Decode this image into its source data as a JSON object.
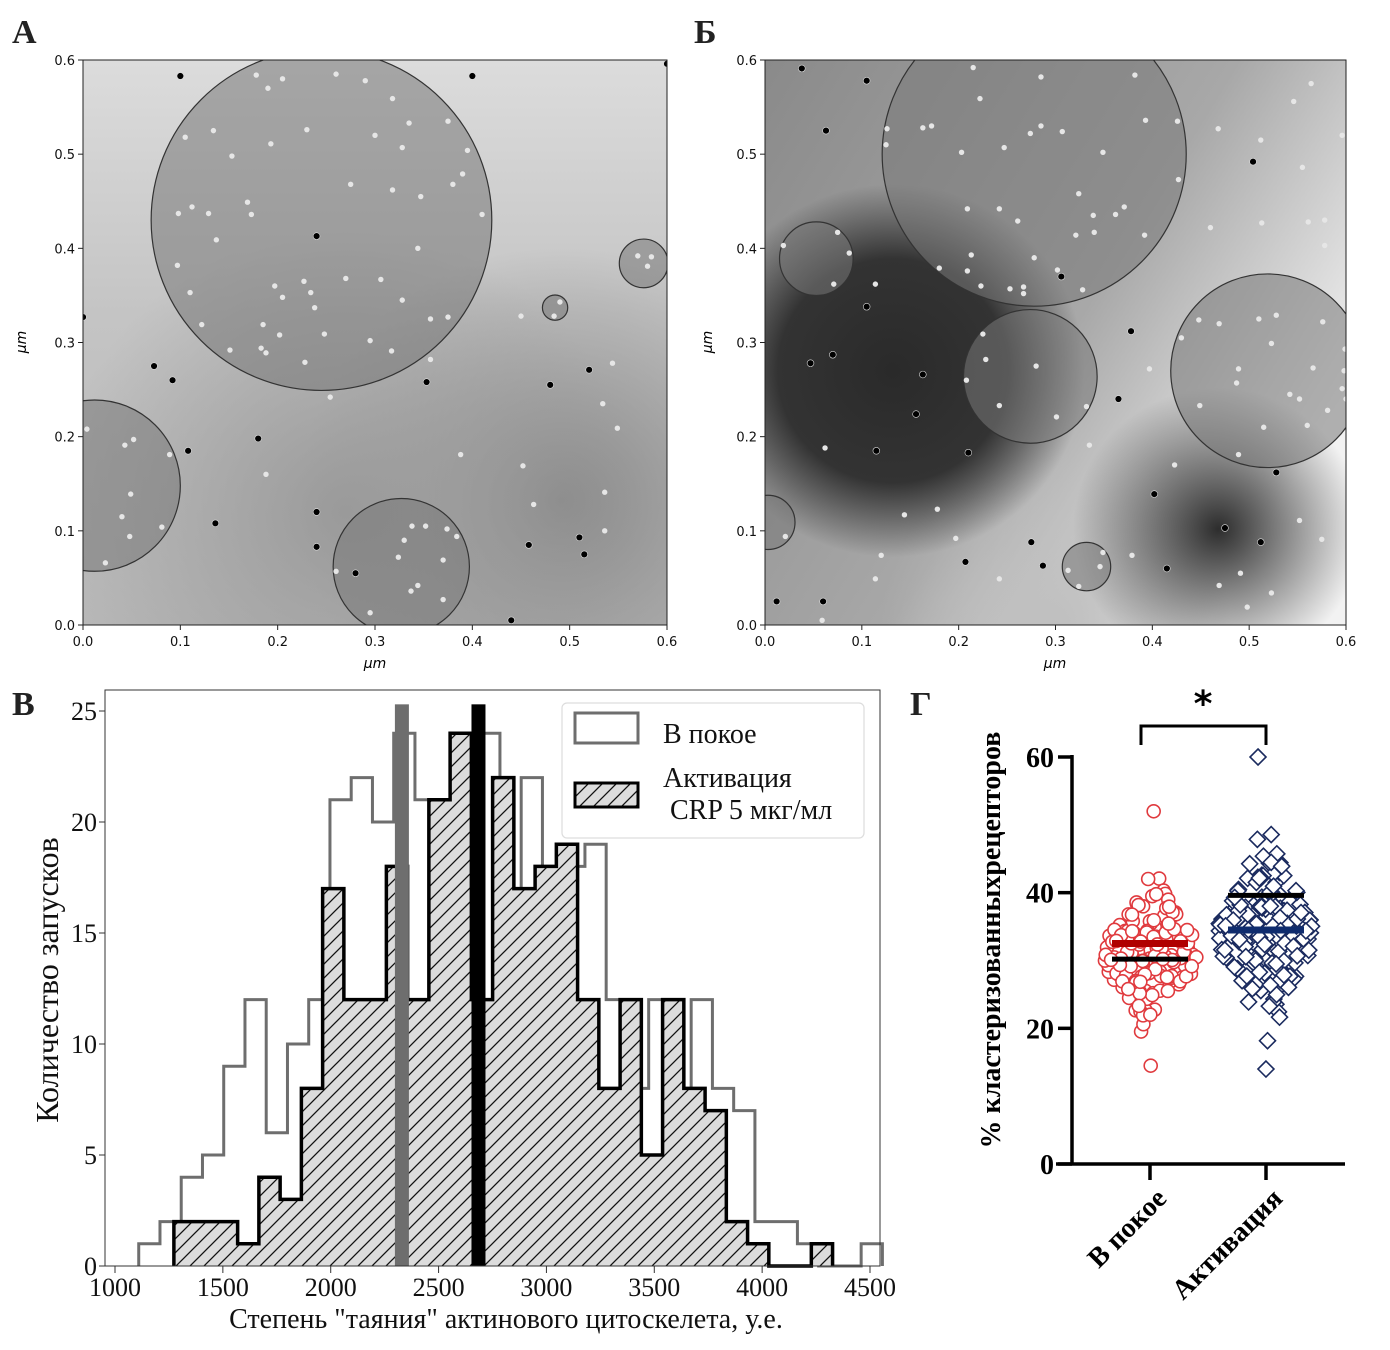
{
  "panels": {
    "a": {
      "letter": "А"
    },
    "b": {
      "letter": "Б"
    },
    "c": {
      "letter": "В"
    },
    "d": {
      "letter": "Г"
    }
  },
  "chart_data": [
    {
      "id": "A",
      "type": "scatter",
      "title": "",
      "xlabel": "μm",
      "ylabel": "μm",
      "xlim": [
        0.0,
        0.6
      ],
      "ylim": [
        0.0,
        0.6
      ],
      "xticks": [
        "0.0",
        "0.1",
        "0.2",
        "0.3",
        "0.4",
        "0.5",
        "0.6"
      ],
      "yticks": [
        "0.0",
        "0.1",
        "0.2",
        "0.3",
        "0.4",
        "0.5",
        "0.6"
      ],
      "background": "grayscale density map (lighter at top-left/top-right, darker lower-right)",
      "clusters": [
        {
          "cx": 0.245,
          "cy": 0.43,
          "r": 0.175
        },
        {
          "cx": 0.012,
          "cy": 0.148,
          "r": 0.088
        },
        {
          "cx": 0.327,
          "cy": 0.062,
          "r": 0.07
        },
        {
          "cx": 0.576,
          "cy": 0.384,
          "r": 0.025
        },
        {
          "cx": 0.485,
          "cy": 0.337,
          "r": 0.013
        }
      ],
      "points": [
        [
          0.1,
          0.583
        ],
        [
          0.4,
          0.583
        ],
        [
          0.6,
          0.596
        ],
        [
          0.24,
          0.413
        ],
        [
          0.0,
          0.327
        ],
        [
          0.092,
          0.26
        ],
        [
          0.073,
          0.275
        ],
        [
          0.108,
          0.185
        ],
        [
          0.136,
          0.108
        ],
        [
          0.24,
          0.12
        ],
        [
          0.24,
          0.083
        ],
        [
          0.28,
          0.055
        ],
        [
          0.353,
          0.258
        ],
        [
          0.48,
          0.255
        ],
        [
          0.52,
          0.271
        ],
        [
          0.458,
          0.085
        ],
        [
          0.51,
          0.093
        ],
        [
          0.515,
          0.075
        ],
        [
          0.18,
          0.198
        ],
        [
          0.44,
          0.005
        ],
        [
          0.178,
          0.584
        ],
        [
          0.19,
          0.57
        ],
        [
          0.205,
          0.58
        ],
        [
          0.26,
          0.585
        ],
        [
          0.29,
          0.578
        ],
        [
          0.318,
          0.559
        ],
        [
          0.134,
          0.525
        ],
        [
          0.23,
          0.526
        ],
        [
          0.193,
          0.511
        ],
        [
          0.3,
          0.52
        ],
        [
          0.335,
          0.533
        ],
        [
          0.375,
          0.535
        ],
        [
          0.105,
          0.518
        ],
        [
          0.153,
          0.498
        ],
        [
          0.328,
          0.507
        ],
        [
          0.395,
          0.504
        ],
        [
          0.275,
          0.468
        ],
        [
          0.318,
          0.462
        ],
        [
          0.38,
          0.468
        ],
        [
          0.39,
          0.479
        ],
        [
          0.347,
          0.455
        ],
        [
          0.098,
          0.437
        ],
        [
          0.112,
          0.444
        ],
        [
          0.129,
          0.437
        ],
        [
          0.169,
          0.449
        ],
        [
          0.173,
          0.436
        ],
        [
          0.41,
          0.436
        ],
        [
          0.137,
          0.409
        ],
        [
          0.344,
          0.4
        ],
        [
          0.097,
          0.382
        ],
        [
          0.27,
          0.368
        ],
        [
          0.306,
          0.367
        ],
        [
          0.227,
          0.365
        ],
        [
          0.197,
          0.36
        ],
        [
          0.234,
          0.353
        ],
        [
          0.205,
          0.348
        ],
        [
          0.11,
          0.353
        ],
        [
          0.238,
          0.337
        ],
        [
          0.328,
          0.345
        ],
        [
          0.122,
          0.319
        ],
        [
          0.185,
          0.319
        ],
        [
          0.357,
          0.325
        ],
        [
          0.375,
          0.327
        ],
        [
          0.202,
          0.308
        ],
        [
          0.248,
          0.309
        ],
        [
          0.151,
          0.292
        ],
        [
          0.183,
          0.294
        ],
        [
          0.188,
          0.289
        ],
        [
          0.228,
          0.279
        ],
        [
          0.295,
          0.302
        ],
        [
          0.317,
          0.291
        ],
        [
          0.004,
          0.208
        ],
        [
          0.043,
          0.191
        ],
        [
          0.052,
          0.197
        ],
        [
          0.089,
          0.181
        ],
        [
          0.049,
          0.139
        ],
        [
          0.04,
          0.115
        ],
        [
          0.048,
          0.094
        ],
        [
          0.081,
          0.104
        ],
        [
          0.023,
          0.066
        ],
        [
          0.338,
          0.105
        ],
        [
          0.352,
          0.105
        ],
        [
          0.374,
          0.102
        ],
        [
          0.384,
          0.094
        ],
        [
          0.33,
          0.09
        ],
        [
          0.324,
          0.072
        ],
        [
          0.37,
          0.069
        ],
        [
          0.337,
          0.036
        ],
        [
          0.344,
          0.042
        ],
        [
          0.37,
          0.027
        ],
        [
          0.295,
          0.013
        ],
        [
          0.26,
          0.057
        ],
        [
          0.57,
          0.392
        ],
        [
          0.584,
          0.391
        ],
        [
          0.58,
          0.381
        ],
        [
          0.49,
          0.343
        ],
        [
          0.484,
          0.328
        ],
        [
          0.388,
          0.181
        ],
        [
          0.452,
          0.169
        ],
        [
          0.463,
          0.128
        ],
        [
          0.536,
          0.141
        ],
        [
          0.534,
          0.235
        ],
        [
          0.549,
          0.209
        ],
        [
          0.544,
          0.278
        ],
        [
          0.536,
          0.1
        ],
        [
          0.254,
          0.242
        ],
        [
          0.188,
          0.16
        ],
        [
          0.357,
          0.282
        ],
        [
          0.45,
          0.328
        ]
      ]
    },
    {
      "id": "Б",
      "type": "scatter",
      "title": "",
      "xlabel": "μm",
      "ylabel": "μm",
      "xlim": [
        0.0,
        0.6
      ],
      "ylim": [
        0.0,
        0.6
      ],
      "xticks": [
        "0.0",
        "0.1",
        "0.2",
        "0.3",
        "0.4",
        "0.5",
        "0.6"
      ],
      "yticks": [
        "0.0",
        "0.1",
        "0.2",
        "0.3",
        "0.4",
        "0.5",
        "0.6"
      ],
      "background": "grayscale density map (very light top-right, dark regions at left-middle and lower-right)",
      "clusters": [
        {
          "cx": 0.278,
          "cy": 0.5,
          "r": 0.157
        },
        {
          "cx": 0.053,
          "cy": 0.389,
          "r": 0.038
        },
        {
          "cx": 0.274,
          "cy": 0.264,
          "r": 0.069
        },
        {
          "cx": 0.519,
          "cy": 0.27,
          "r": 0.1
        },
        {
          "cx": 0.003,
          "cy": 0.109,
          "r": 0.028
        },
        {
          "cx": 0.332,
          "cy": 0.062,
          "r": 0.025
        }
      ],
      "points": [
        [
          0.038,
          0.591
        ],
        [
          0.105,
          0.578
        ],
        [
          0.063,
          0.525
        ],
        [
          0.306,
          0.37
        ],
        [
          0.047,
          0.278
        ],
        [
          0.07,
          0.287
        ],
        [
          0.163,
          0.266
        ],
        [
          0.156,
          0.224
        ],
        [
          0.115,
          0.185
        ],
        [
          0.21,
          0.183
        ],
        [
          0.378,
          0.312
        ],
        [
          0.528,
          0.162
        ],
        [
          0.402,
          0.139
        ],
        [
          0.475,
          0.103
        ],
        [
          0.512,
          0.088
        ],
        [
          0.415,
          0.06
        ],
        [
          0.275,
          0.088
        ],
        [
          0.287,
          0.063
        ],
        [
          0.207,
          0.067
        ],
        [
          0.012,
          0.025
        ],
        [
          0.06,
          0.025
        ],
        [
          0.105,
          0.338
        ],
        [
          0.365,
          0.24
        ],
        [
          0.504,
          0.492
        ],
        [
          0.215,
          0.592
        ],
        [
          0.285,
          0.582
        ],
        [
          0.382,
          0.584
        ],
        [
          0.222,
          0.559
        ],
        [
          0.126,
          0.527
        ],
        [
          0.163,
          0.528
        ],
        [
          0.172,
          0.53
        ],
        [
          0.274,
          0.522
        ],
        [
          0.285,
          0.53
        ],
        [
          0.307,
          0.524
        ],
        [
          0.393,
          0.536
        ],
        [
          0.426,
          0.535
        ],
        [
          0.125,
          0.51
        ],
        [
          0.203,
          0.502
        ],
        [
          0.247,
          0.507
        ],
        [
          0.349,
          0.502
        ],
        [
          0.427,
          0.473
        ],
        [
          0.324,
          0.458
        ],
        [
          0.209,
          0.442
        ],
        [
          0.242,
          0.442
        ],
        [
          0.261,
          0.429
        ],
        [
          0.339,
          0.435
        ],
        [
          0.362,
          0.436
        ],
        [
          0.371,
          0.444
        ],
        [
          0.321,
          0.414
        ],
        [
          0.34,
          0.417
        ],
        [
          0.392,
          0.414
        ],
        [
          0.213,
          0.393
        ],
        [
          0.278,
          0.39
        ],
        [
          0.18,
          0.379
        ],
        [
          0.209,
          0.376
        ],
        [
          0.302,
          0.377
        ],
        [
          0.223,
          0.36
        ],
        [
          0.253,
          0.357
        ],
        [
          0.267,
          0.359
        ],
        [
          0.267,
          0.352
        ],
        [
          0.328,
          0.356
        ],
        [
          0.019,
          0.403
        ],
        [
          0.075,
          0.417
        ],
        [
          0.087,
          0.395
        ],
        [
          0.071,
          0.362
        ],
        [
          0.114,
          0.362
        ],
        [
          0.225,
          0.309
        ],
        [
          0.228,
          0.282
        ],
        [
          0.28,
          0.275
        ],
        [
          0.208,
          0.26
        ],
        [
          0.242,
          0.233
        ],
        [
          0.301,
          0.221
        ],
        [
          0.332,
          0.232
        ],
        [
          0.448,
          0.324
        ],
        [
          0.469,
          0.32
        ],
        [
          0.51,
          0.325
        ],
        [
          0.528,
          0.329
        ],
        [
          0.576,
          0.322
        ],
        [
          0.43,
          0.305
        ],
        [
          0.523,
          0.299
        ],
        [
          0.599,
          0.293
        ],
        [
          0.489,
          0.272
        ],
        [
          0.566,
          0.273
        ],
        [
          0.598,
          0.27
        ],
        [
          0.487,
          0.257
        ],
        [
          0.542,
          0.245
        ],
        [
          0.552,
          0.24
        ],
        [
          0.596,
          0.251
        ],
        [
          0.449,
          0.233
        ],
        [
          0.6,
          0.24
        ],
        [
          0.581,
          0.228
        ],
        [
          0.56,
          0.212
        ],
        [
          0.515,
          0.21
        ],
        [
          0.489,
          0.181
        ],
        [
          0.468,
          0.527
        ],
        [
          0.512,
          0.515
        ],
        [
          0.596,
          0.52
        ],
        [
          0.546,
          0.556
        ],
        [
          0.564,
          0.575
        ],
        [
          0.555,
          0.486
        ],
        [
          0.46,
          0.422
        ],
        [
          0.513,
          0.427
        ],
        [
          0.561,
          0.428
        ],
        [
          0.578,
          0.43
        ],
        [
          0.578,
          0.403
        ],
        [
          0.021,
          0.094
        ],
        [
          0.12,
          0.074
        ],
        [
          0.114,
          0.049
        ],
        [
          0.144,
          0.117
        ],
        [
          0.178,
          0.123
        ],
        [
          0.197,
          0.092
        ],
        [
          0.242,
          0.049
        ],
        [
          0.062,
          0.188
        ],
        [
          0.335,
          0.191
        ],
        [
          0.397,
          0.272
        ],
        [
          0.313,
          0.058
        ],
        [
          0.324,
          0.041
        ],
        [
          0.346,
          0.062
        ],
        [
          0.349,
          0.077
        ],
        [
          0.379,
          0.074
        ],
        [
          0.552,
          0.111
        ],
        [
          0.575,
          0.091
        ],
        [
          0.491,
          0.055
        ],
        [
          0.469,
          0.042
        ],
        [
          0.523,
          0.034
        ],
        [
          0.498,
          0.019
        ],
        [
          0.059,
          0.005
        ],
        [
          0.423,
          0.17
        ]
      ]
    },
    {
      "id": "В",
      "type": "bar",
      "subtype": "step-histogram",
      "title": "",
      "xlabel": "Степень \"таяния\" актинового цитоскелета, у.е.",
      "ylabel": "Количество запусков",
      "xlim": [
        960,
        4550
      ],
      "ylim": [
        0,
        26.2
      ],
      "xticks": [
        "1000",
        "1500",
        "2000",
        "2500",
        "3000",
        "3500",
        "4000",
        "4500"
      ],
      "xtick_values": [
        1000,
        1500,
        2000,
        2500,
        3000,
        3500,
        4000,
        4500
      ],
      "yticks": [
        "0",
        "5",
        "10",
        "15",
        "20",
        "25"
      ],
      "ytick_values": [
        0,
        5,
        10,
        15,
        20,
        25
      ],
      "legend": {
        "position": "top-right",
        "entries": [
          "В покое",
          "Активация\n CRP 5 мкг/мл"
        ],
        "entry_lines": [
          [
            "В покое"
          ],
          [
            "Активация",
            " CRP 5 мкг/мл"
          ]
        ]
      },
      "series": [
        {
          "name": "В покое",
          "style": "gray outline, no fill",
          "color": "#6e6e6e",
          "bin_start": 1110,
          "bin_width": 98.5,
          "values": [
            1,
            2,
            4,
            5,
            9,
            12,
            6,
            10,
            12,
            21,
            22,
            20,
            24,
            21,
            21,
            23,
            24,
            12,
            22,
            17,
            18,
            19,
            12,
            8,
            12,
            5,
            12,
            8,
            7,
            2,
            2,
            1,
            0,
            0,
            1
          ]
        },
        {
          "name": "Активация CRP 5 мкг/мл",
          "style": "black outline, light gray fill with diagonal hatch",
          "color": "#000000",
          "fill": "#dcdcdc",
          "bin_start": 1273,
          "bin_width": 98.5,
          "values": [
            2,
            2,
            2,
            1,
            4,
            3,
            8,
            17,
            12,
            12,
            18,
            12,
            21,
            24,
            12,
            22,
            17,
            18,
            19,
            12,
            8,
            12,
            5,
            12,
            8,
            7,
            2,
            1,
            0,
            0,
            1
          ]
        }
      ],
      "vlines": [
        {
          "name": "mean-rest",
          "x": 2330,
          "color": "#6e6e6e"
        },
        {
          "name": "mean-activation",
          "x": 2685,
          "color": "#000000"
        }
      ]
    },
    {
      "id": "Г",
      "type": "scatter",
      "subtype": "beeswarm",
      "title": "",
      "xlabel": "",
      "ylabel": "% кластеризованныхрецепторов",
      "ylim": [
        0,
        60
      ],
      "yticks": [
        "0",
        "20",
        "40",
        "60"
      ],
      "ytick_values": [
        0,
        20,
        40,
        60
      ],
      "categories": [
        "В покое",
        "Активация"
      ],
      "significance": {
        "between": [
          "В покое",
          "Активация"
        ],
        "label": "*"
      },
      "series": [
        {
          "name": "В покое",
          "marker": "circle-open",
          "color": "#e03a3e",
          "mean_color": "#b00000",
          "range": [
            14.5,
            52
          ],
          "mean": 32.5,
          "median": 30.2
        },
        {
          "name": "Активация",
          "marker": "diamond-open",
          "color": "#1a2a5e",
          "mean_color": "#0f2c6e",
          "range": [
            14,
            60
          ],
          "mean": 34.5,
          "median": 39.6
        }
      ]
    }
  ]
}
